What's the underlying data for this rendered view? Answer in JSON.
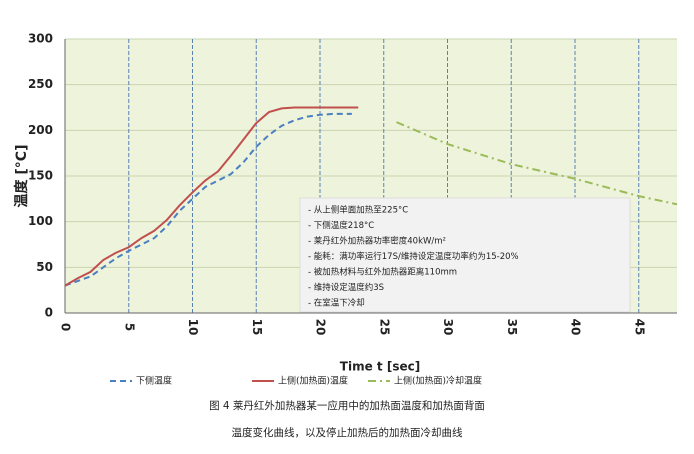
{
  "chart_data": {
    "type": "line",
    "y_label": "温度  [°C]",
    "x_label": "Time t [sec]",
    "xlim": [
      0,
      48
    ],
    "xticks": [
      0,
      5,
      10,
      15,
      20,
      25,
      30,
      35,
      40,
      45
    ],
    "ylim": [
      0,
      300
    ],
    "yticks": [
      0,
      50,
      100,
      150,
      200,
      250,
      300
    ],
    "grid": true,
    "legend": "bottom",
    "series": [
      {
        "name": "下侧温度",
        "color": "#4a7fc1",
        "dash": "dashed",
        "x": [
          0,
          1,
          2,
          3,
          4,
          5,
          6,
          7,
          8,
          9,
          10,
          11,
          12,
          13,
          14,
          15,
          16,
          17,
          18,
          19,
          20,
          21,
          22,
          22.5
        ],
        "values": [
          30,
          35,
          40,
          50,
          60,
          68,
          75,
          82,
          95,
          112,
          125,
          138,
          145,
          152,
          165,
          182,
          195,
          205,
          211,
          215,
          217,
          218,
          218,
          218
        ]
      },
      {
        "name": "上侧(加热面)温度",
        "color": "#c0504d",
        "dash": "solid",
        "x": [
          0,
          1,
          2,
          3,
          4,
          5,
          6,
          7,
          8,
          9,
          10,
          11,
          12,
          13,
          14,
          15,
          16,
          17,
          18,
          19,
          20,
          21,
          22,
          23
        ],
        "values": [
          30,
          38,
          45,
          58,
          66,
          72,
          82,
          90,
          102,
          118,
          132,
          145,
          155,
          172,
          190,
          208,
          220,
          224,
          225,
          225,
          225,
          225,
          225,
          225
        ]
      },
      {
        "name": "上侧(加热面)冷却温度",
        "color": "#9bbb59",
        "dash": "dashdot",
        "x": [
          26,
          30,
          35,
          40,
          45,
          48
        ],
        "values": [
          209,
          185,
          163,
          147,
          128,
          119
        ]
      }
    ],
    "annotations": [
      "- 从上侧单面加热至225°C",
      "- 下侧温度218°C",
      "- 莱丹红外加热器功率密度40kW/m²",
      "- 能耗：满功率运行17S/维持设定温度功率约为15-20%",
      "- 被加热材料与红外加热器距离110mm",
      "- 维持设定温度约3S",
      "- 在室温下冷却"
    ],
    "caption": [
      "图 4 莱丹红外加热器某一应用中的加热面温度和加热面背面",
      "温度变化曲线，以及停止加热后的加热面冷却曲线"
    ]
  }
}
